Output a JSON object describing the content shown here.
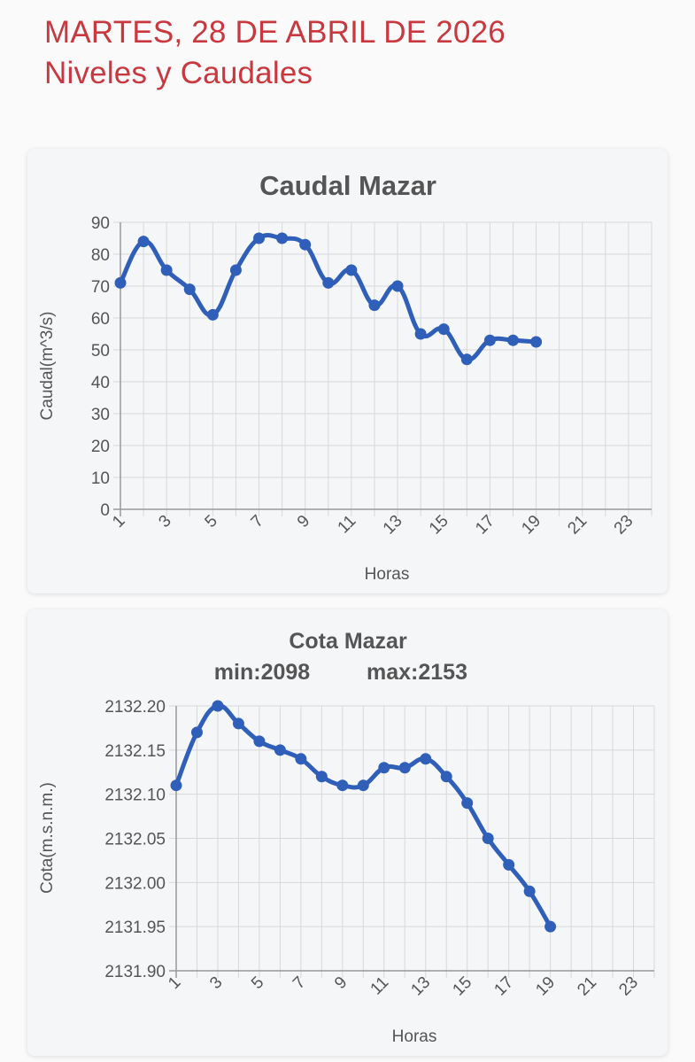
{
  "header": {
    "date_line": "MARTES, 28 DE ABRIL DE 2026",
    "subtitle": "Niveles y Caudales"
  },
  "colors": {
    "title": "#c8383e",
    "line": "#2f5fb8",
    "grid": "#d8d8d8",
    "text": "#555555"
  },
  "chart_data": [
    {
      "type": "line",
      "title": "Caudal Mazar",
      "xlabel": "Horas",
      "ylabel": "Caudal(m^3/s)",
      "xlim": [
        1,
        24
      ],
      "x_tick_labels": [
        "1",
        "3",
        "5",
        "7",
        "9",
        "11",
        "13",
        "15",
        "17",
        "19",
        "21",
        "23"
      ],
      "ylim": [
        0,
        90
      ],
      "y_tick_labels": [
        "0",
        "10",
        "20",
        "30",
        "40",
        "50",
        "60",
        "70",
        "80",
        "90"
      ],
      "grid": true,
      "series": [
        {
          "x": [
            1,
            2,
            3,
            4,
            5,
            6,
            7,
            8,
            9,
            10,
            11,
            12,
            13,
            14,
            15,
            16,
            17,
            18,
            19
          ],
          "values": [
            71,
            84,
            75,
            69,
            61,
            75,
            85,
            85,
            83,
            71,
            75,
            64,
            70,
            55,
            56.5,
            47,
            53,
            53,
            52.5
          ]
        }
      ]
    },
    {
      "type": "line",
      "title": "Cota Mazar",
      "subtitle_min": "min:2098",
      "subtitle_max": "max:2153",
      "xlabel": "Horas",
      "ylabel": "Cota(m.s.n.m.)",
      "xlim": [
        1,
        24
      ],
      "x_tick_labels": [
        "1",
        "3",
        "5",
        "7",
        "9",
        "11",
        "13",
        "15",
        "17",
        "19",
        "21",
        "23"
      ],
      "ylim": [
        2131.9,
        2132.2
      ],
      "y_tick_labels": [
        "2131.90",
        "2131.95",
        "2132.00",
        "2132.05",
        "2132.10",
        "2132.15",
        "2132.20"
      ],
      "grid": true,
      "series": [
        {
          "x": [
            1,
            2,
            3,
            4,
            5,
            6,
            7,
            8,
            9,
            10,
            11,
            12,
            13,
            14,
            15,
            16,
            17,
            18,
            19
          ],
          "values": [
            2132.11,
            2132.17,
            2132.2,
            2132.18,
            2132.16,
            2132.15,
            2132.14,
            2132.12,
            2132.11,
            2132.11,
            2132.13,
            2132.13,
            2132.14,
            2132.12,
            2132.09,
            2132.05,
            2132.02,
            2131.99,
            2131.95
          ]
        }
      ]
    }
  ]
}
